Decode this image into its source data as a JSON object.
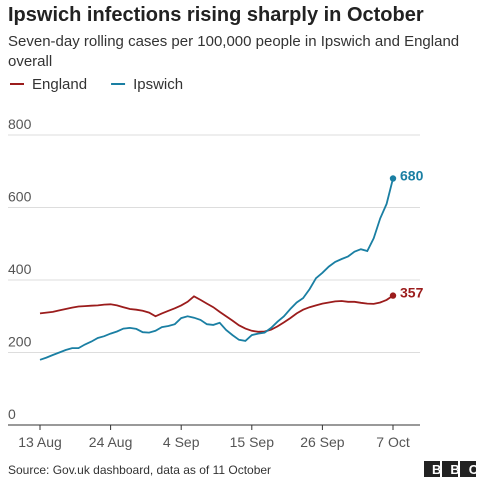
{
  "chart_data": {
    "type": "line",
    "title": "Ipswich infections rising sharply in October",
    "subtitle": "Seven-day rolling cases per 100,000 people in Ipswich and England overall",
    "source": "Source: Gov.uk dashboard, data as of 11 October",
    "logo": "BBC",
    "categories": [
      "13 Aug",
      null,
      null,
      null,
      null,
      null,
      null,
      null,
      null,
      null,
      null,
      "24 Aug",
      null,
      null,
      null,
      null,
      null,
      null,
      null,
      null,
      null,
      null,
      "4 Sep",
      null,
      null,
      null,
      null,
      null,
      null,
      null,
      null,
      null,
      null,
      "15 Sep",
      null,
      null,
      null,
      null,
      null,
      null,
      null,
      null,
      null,
      null,
      "26 Sep",
      null,
      null,
      null,
      null,
      null,
      null,
      null,
      null,
      null,
      null,
      "7 Oct"
    ],
    "series": [
      {
        "name": "England",
        "color": "#9b1c1c",
        "values": [
          308,
          310,
          312,
          316,
          320,
          324,
          327,
          328,
          329,
          330,
          332,
          333,
          330,
          325,
          320,
          318,
          315,
          310,
          300,
          308,
          315,
          322,
          330,
          340,
          355,
          345,
          335,
          325,
          312,
          300,
          288,
          275,
          266,
          260,
          257,
          258,
          263,
          272,
          283,
          295,
          308,
          318,
          325,
          330,
          335,
          338,
          341,
          342,
          340,
          340,
          337,
          335,
          334,
          338,
          345,
          357
        ]
      },
      {
        "name": "Ipswich",
        "color": "#1a7fa3",
        "values": [
          180,
          186,
          193,
          200,
          207,
          212,
          212,
          222,
          230,
          240,
          245,
          252,
          258,
          266,
          268,
          265,
          256,
          255,
          260,
          270,
          273,
          278,
          295,
          300,
          296,
          290,
          278,
          276,
          282,
          262,
          248,
          235,
          232,
          248,
          252,
          255,
          268,
          285,
          300,
          320,
          338,
          350,
          375,
          405,
          420,
          437,
          450,
          458,
          465,
          478,
          485,
          480,
          515,
          570,
          610,
          680
        ]
      }
    ],
    "ylim": [
      0,
      800
    ],
    "yticks": [
      0,
      200,
      400,
      600,
      800
    ],
    "grid": true
  }
}
